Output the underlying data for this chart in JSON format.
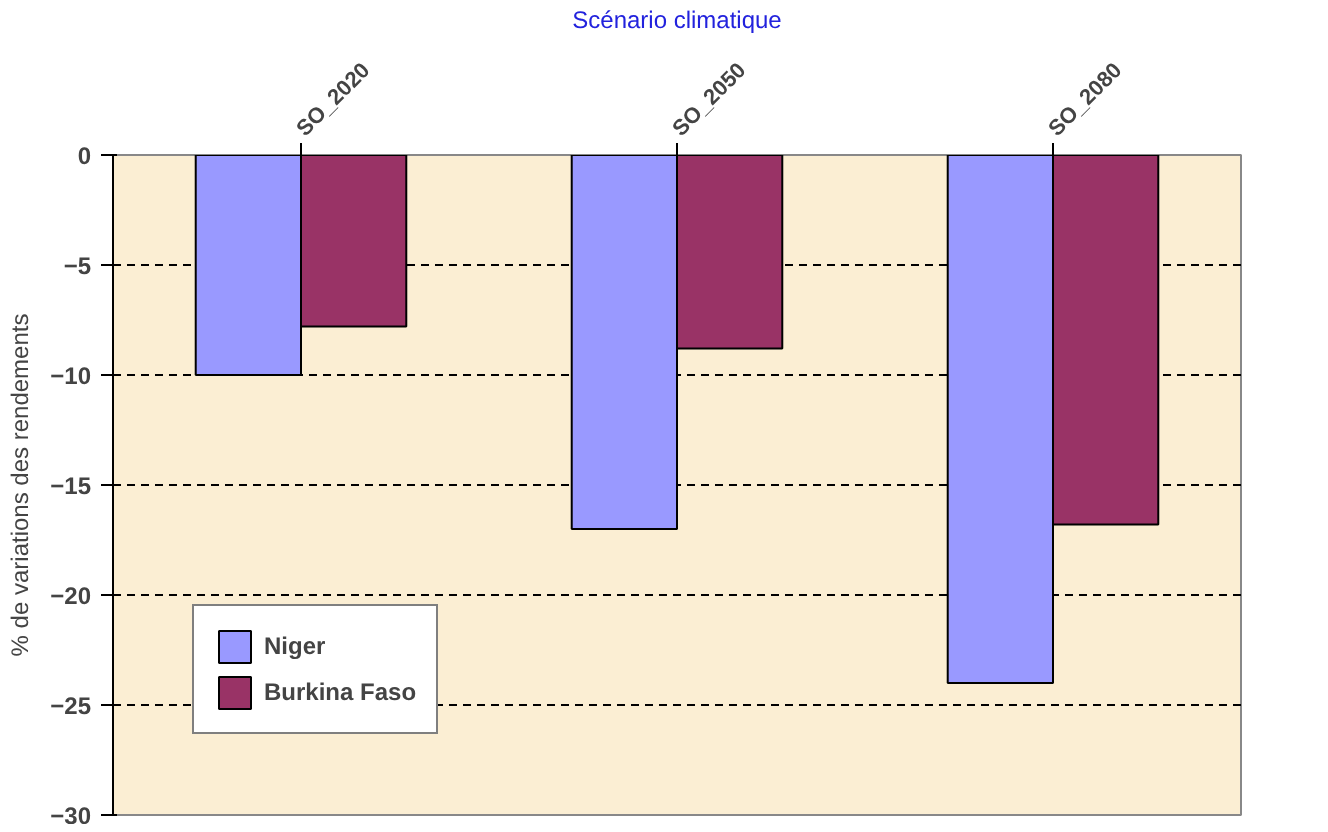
{
  "chart_data": {
    "type": "bar",
    "xlabel": "Scénario climatique",
    "ylabel": "% de variations des rendements",
    "categories": [
      "SO_2020",
      "SO_2050",
      "SO_2080"
    ],
    "series": [
      {
        "name": "Niger",
        "color": "#9999ff",
        "values": [
          -10,
          -17,
          -24
        ]
      },
      {
        "name": "Burkina Faso",
        "color": "#993366",
        "values": [
          -7.8,
          -8.8,
          -16.8
        ]
      }
    ],
    "ylim": [
      -30,
      0
    ],
    "yticks": [
      -30,
      -25,
      -20,
      -15,
      -10,
      -5,
      0
    ],
    "grid": "y",
    "legend": "bottom left"
  }
}
